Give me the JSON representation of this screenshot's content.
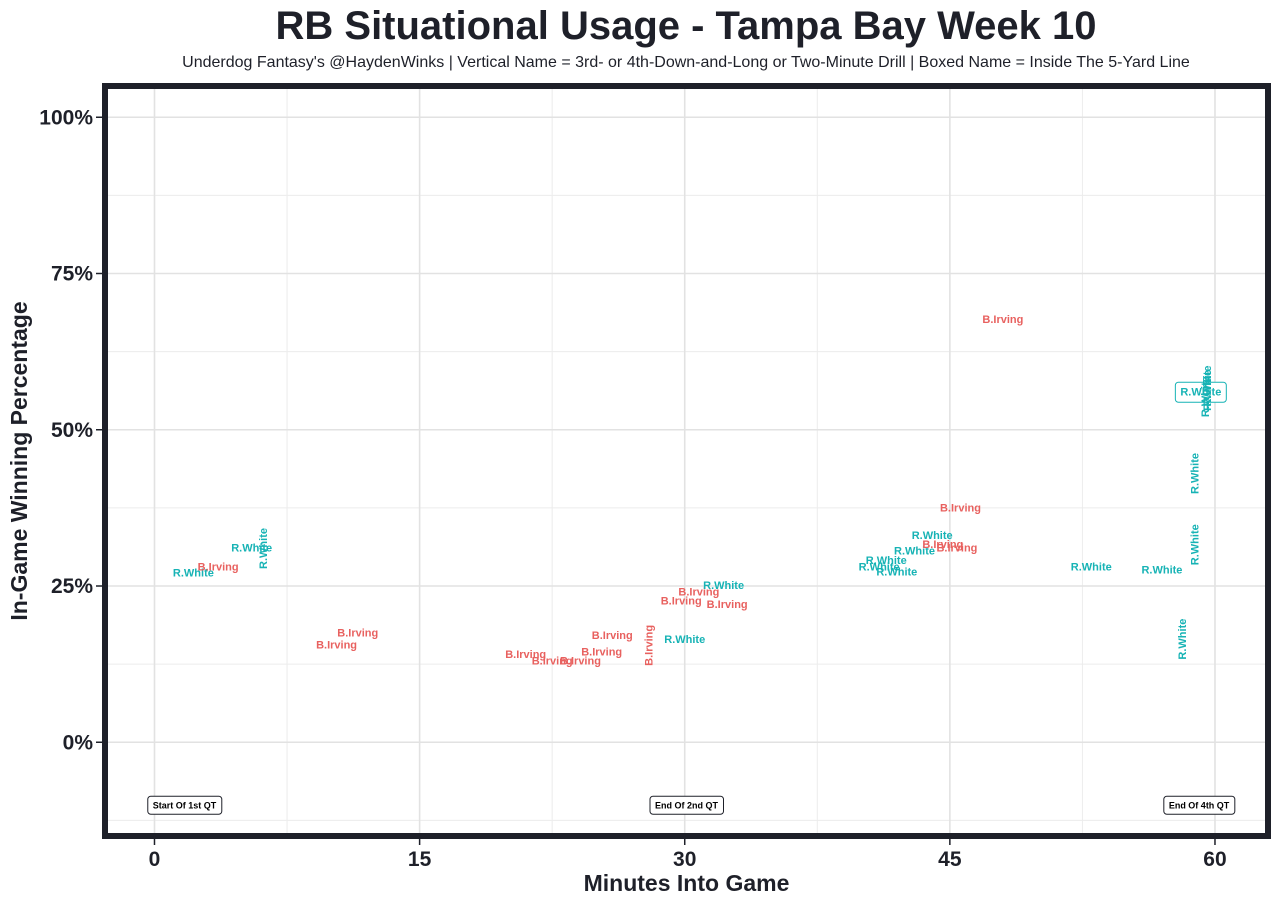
{
  "chart_data": {
    "type": "scatter",
    "title": "RB Situational Usage - Tampa Bay Week 10",
    "subtitle": "Underdog Fantasy's @HaydenWinks | Vertical Name = 3rd- or 4th-Down-and-Long or Two-Minute Drill | Boxed Name = Inside The 5-Yard Line",
    "xlabel": "Minutes Into Game",
    "ylabel": "In-Game Winning Percentage",
    "xlim": [
      -2.8,
      63
    ],
    "ylim": [
      -15,
      105
    ],
    "x_ticks": [
      {
        "value": 0,
        "label": "0"
      },
      {
        "value": 15,
        "label": "15"
      },
      {
        "value": 30,
        "label": "30"
      },
      {
        "value": 45,
        "label": "45"
      },
      {
        "value": 60,
        "label": "60"
      }
    ],
    "y_ticks": [
      {
        "value": 0,
        "label": "0%"
      },
      {
        "value": 25,
        "label": "25%"
      },
      {
        "value": 50,
        "label": "50%"
      },
      {
        "value": 75,
        "label": "75%"
      },
      {
        "value": 100,
        "label": "100%"
      }
    ],
    "grid": true,
    "colors": {
      "B.Irving": "#e8615f",
      "R.White": "#17b3b5",
      "frame": "#1e2029"
    },
    "markers": [
      {
        "x": 1.7,
        "y": -10,
        "label": "Start Of 1st QT"
      },
      {
        "x": 30.1,
        "y": -10,
        "label": "End Of 2nd QT"
      },
      {
        "x": 59.1,
        "y": -10,
        "label": "End Of 4th QT"
      }
    ],
    "points": [
      {
        "player": "R.White",
        "x": 2.2,
        "y": 27.0
      },
      {
        "player": "B.Irving",
        "x": 3.6,
        "y": 28.0
      },
      {
        "player": "R.White",
        "x": 5.5,
        "y": 31.0
      },
      {
        "player": "R.White",
        "x": 6.2,
        "y": 31.0,
        "vertical": true
      },
      {
        "player": "B.Irving",
        "x": 10.3,
        "y": 15.5
      },
      {
        "player": "B.Irving",
        "x": 11.5,
        "y": 17.4
      },
      {
        "player": "B.Irving",
        "x": 21.0,
        "y": 14.0
      },
      {
        "player": "B.Irving",
        "x": 22.5,
        "y": 12.9
      },
      {
        "player": "B.Irving",
        "x": 24.1,
        "y": 12.9
      },
      {
        "player": "B.Irving",
        "x": 25.3,
        "y": 14.4
      },
      {
        "player": "B.Irving",
        "x": 25.9,
        "y": 17.0
      },
      {
        "player": "B.Irving",
        "x": 28.0,
        "y": 15.5,
        "vertical": true
      },
      {
        "player": "R.White",
        "x": 30.0,
        "y": 16.4
      },
      {
        "player": "B.Irving",
        "x": 29.8,
        "y": 22.5
      },
      {
        "player": "B.Irving",
        "x": 30.8,
        "y": 24.0
      },
      {
        "player": "B.Irving",
        "x": 32.4,
        "y": 22.0
      },
      {
        "player": "R.White",
        "x": 32.2,
        "y": 25.0
      },
      {
        "player": "R.White",
        "x": 41.0,
        "y": 28.0
      },
      {
        "player": "R.White",
        "x": 41.4,
        "y": 29.0
      },
      {
        "player": "R.White",
        "x": 42.0,
        "y": 27.2
      },
      {
        "player": "R.White",
        "x": 43.0,
        "y": 30.5
      },
      {
        "player": "R.White",
        "x": 44.0,
        "y": 33.0
      },
      {
        "player": "B.Irving",
        "x": 44.6,
        "y": 31.6
      },
      {
        "player": "B.Irving",
        "x": 45.4,
        "y": 31.0
      },
      {
        "player": "B.Irving",
        "x": 45.6,
        "y": 37.4
      },
      {
        "player": "B.Irving",
        "x": 48.0,
        "y": 67.6
      },
      {
        "player": "R.White",
        "x": 53.0,
        "y": 28.0
      },
      {
        "player": "R.White",
        "x": 57.0,
        "y": 27.5
      },
      {
        "player": "R.White",
        "x": 58.2,
        "y": 16.5,
        "vertical": true
      },
      {
        "player": "R.White",
        "x": 58.9,
        "y": 31.6,
        "vertical": true
      },
      {
        "player": "R.White",
        "x": 58.9,
        "y": 43.0,
        "vertical": true
      },
      {
        "player": "R.White",
        "x": 59.2,
        "y": 56.0,
        "boxed": true
      },
      {
        "player": "R.White",
        "x": 59.5,
        "y": 55.3,
        "vertical": true
      },
      {
        "player": "R.White",
        "x": 59.6,
        "y": 56.3,
        "vertical": true
      },
      {
        "player": "R.White",
        "x": 59.6,
        "y": 57.0,
        "vertical": true
      }
    ]
  }
}
